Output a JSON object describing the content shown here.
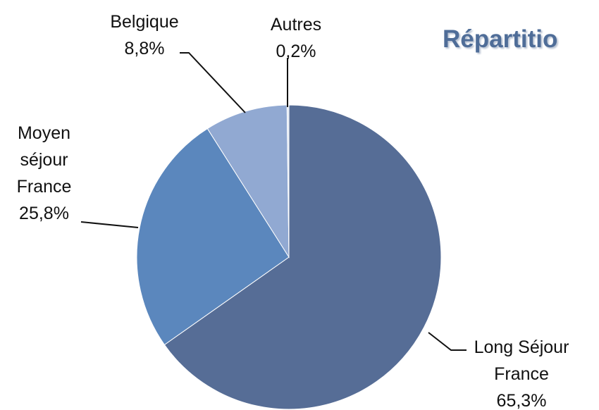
{
  "chart_data": {
    "type": "pie",
    "title": "Répartitio",
    "categories": [
      "Long Séjour France",
      "Moyen séjour France",
      "Belgique",
      "Autres"
    ],
    "values": [
      65.3,
      25.8,
      8.8,
      0.2
    ],
    "value_labels": [
      "65,3%",
      "25,8%",
      "8,8%",
      "0,2%"
    ],
    "colors": [
      "#566d96",
      "#5b87bd",
      "#91a9d2",
      "#dde5f0"
    ]
  }
}
